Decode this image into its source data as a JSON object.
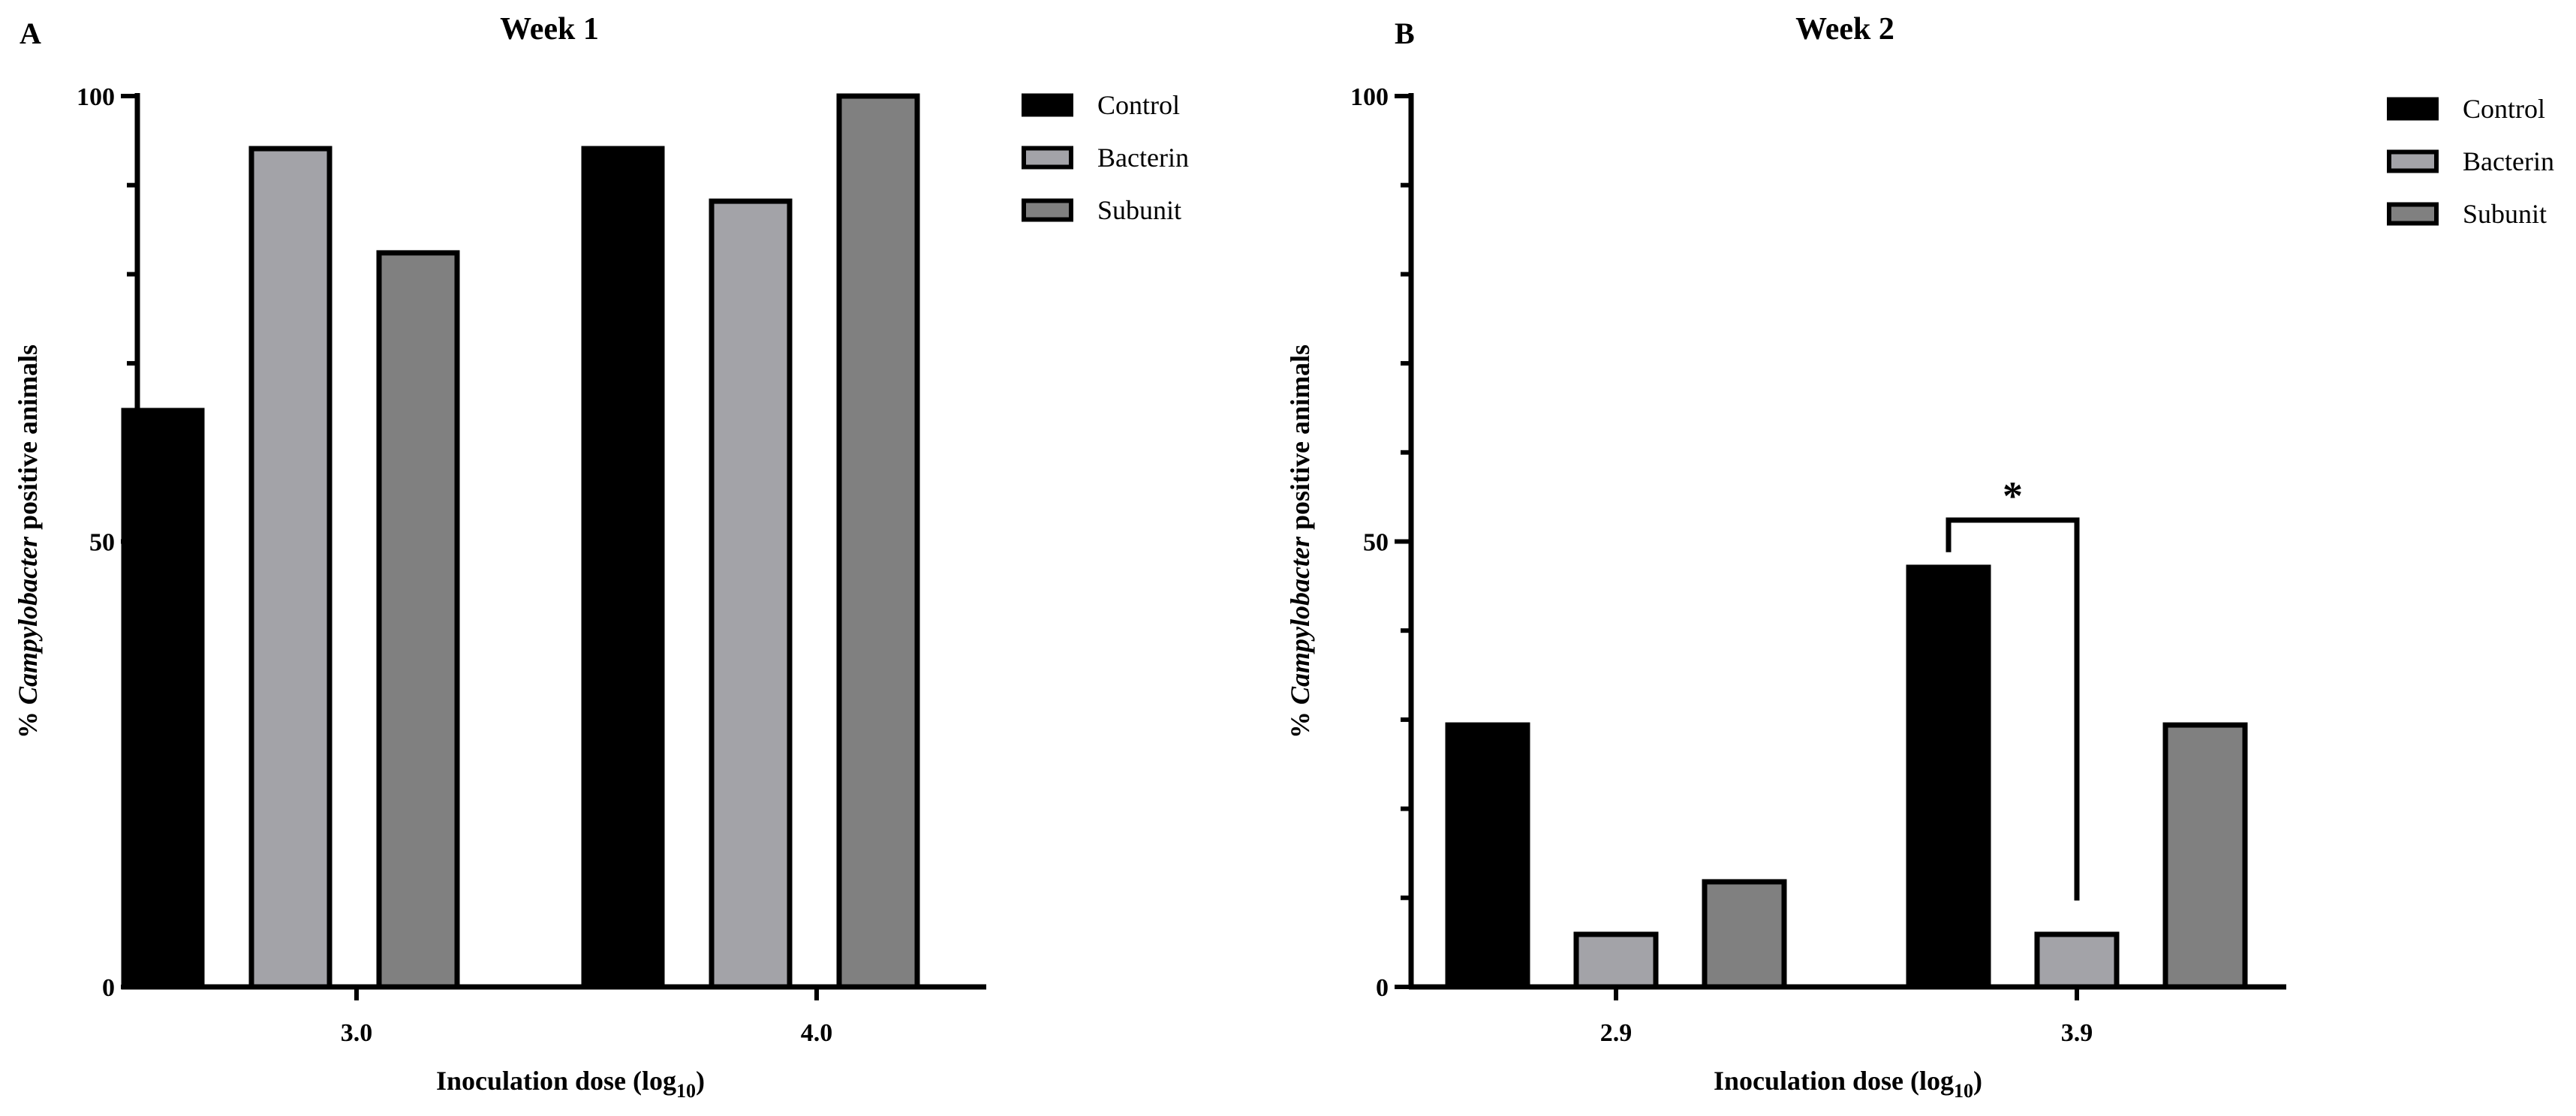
{
  "chart_data": [
    {
      "type": "bar",
      "panel_label": "A",
      "title": "Week 1",
      "xlabel_main": "Inoculation dose (log",
      "xlabel_sub": "10",
      "xlabel_end": ")",
      "ylabel_pre": "% ",
      "ylabel_italic": "Campylobacter",
      "ylabel_post": " positive animals",
      "ylim": [
        0,
        100
      ],
      "yticks": [
        "0",
        "50",
        "100"
      ],
      "categories": [
        "3.0",
        "4.0"
      ],
      "series": [
        {
          "name": "Control",
          "values": [
            64.7,
            94.1
          ]
        },
        {
          "name": "Bacterin",
          "values": [
            94.1,
            88.2
          ]
        },
        {
          "name": "Subunit",
          "values": [
            82.4,
            100
          ]
        }
      ],
      "annotations": []
    },
    {
      "type": "bar",
      "panel_label": "B",
      "title": "Week 2",
      "xlabel_main": "Inoculation dose (log",
      "xlabel_sub": "10",
      "xlabel_end": ")",
      "ylabel_pre": "% ",
      "ylabel_italic": "Campylobacter",
      "ylabel_post": " positive animals",
      "ylim": [
        0,
        100
      ],
      "yticks": [
        "0",
        "50",
        "100"
      ],
      "categories": [
        "2.9",
        "3.9"
      ],
      "series": [
        {
          "name": "Control",
          "values": [
            29.4,
            47.1
          ]
        },
        {
          "name": "Bacterin",
          "values": [
            5.9,
            5.9
          ]
        },
        {
          "name": "Subunit",
          "values": [
            11.8,
            29.4
          ]
        }
      ],
      "annotations": [
        {
          "type": "significance",
          "text": "*",
          "category": "3.9",
          "from_series": "Control",
          "to_series": "Bacterin"
        }
      ]
    }
  ],
  "colors": {
    "Control": "#000000",
    "Bacterin": "#a3a3a8",
    "Subunit": "#808080",
    "outline": "#000000"
  }
}
